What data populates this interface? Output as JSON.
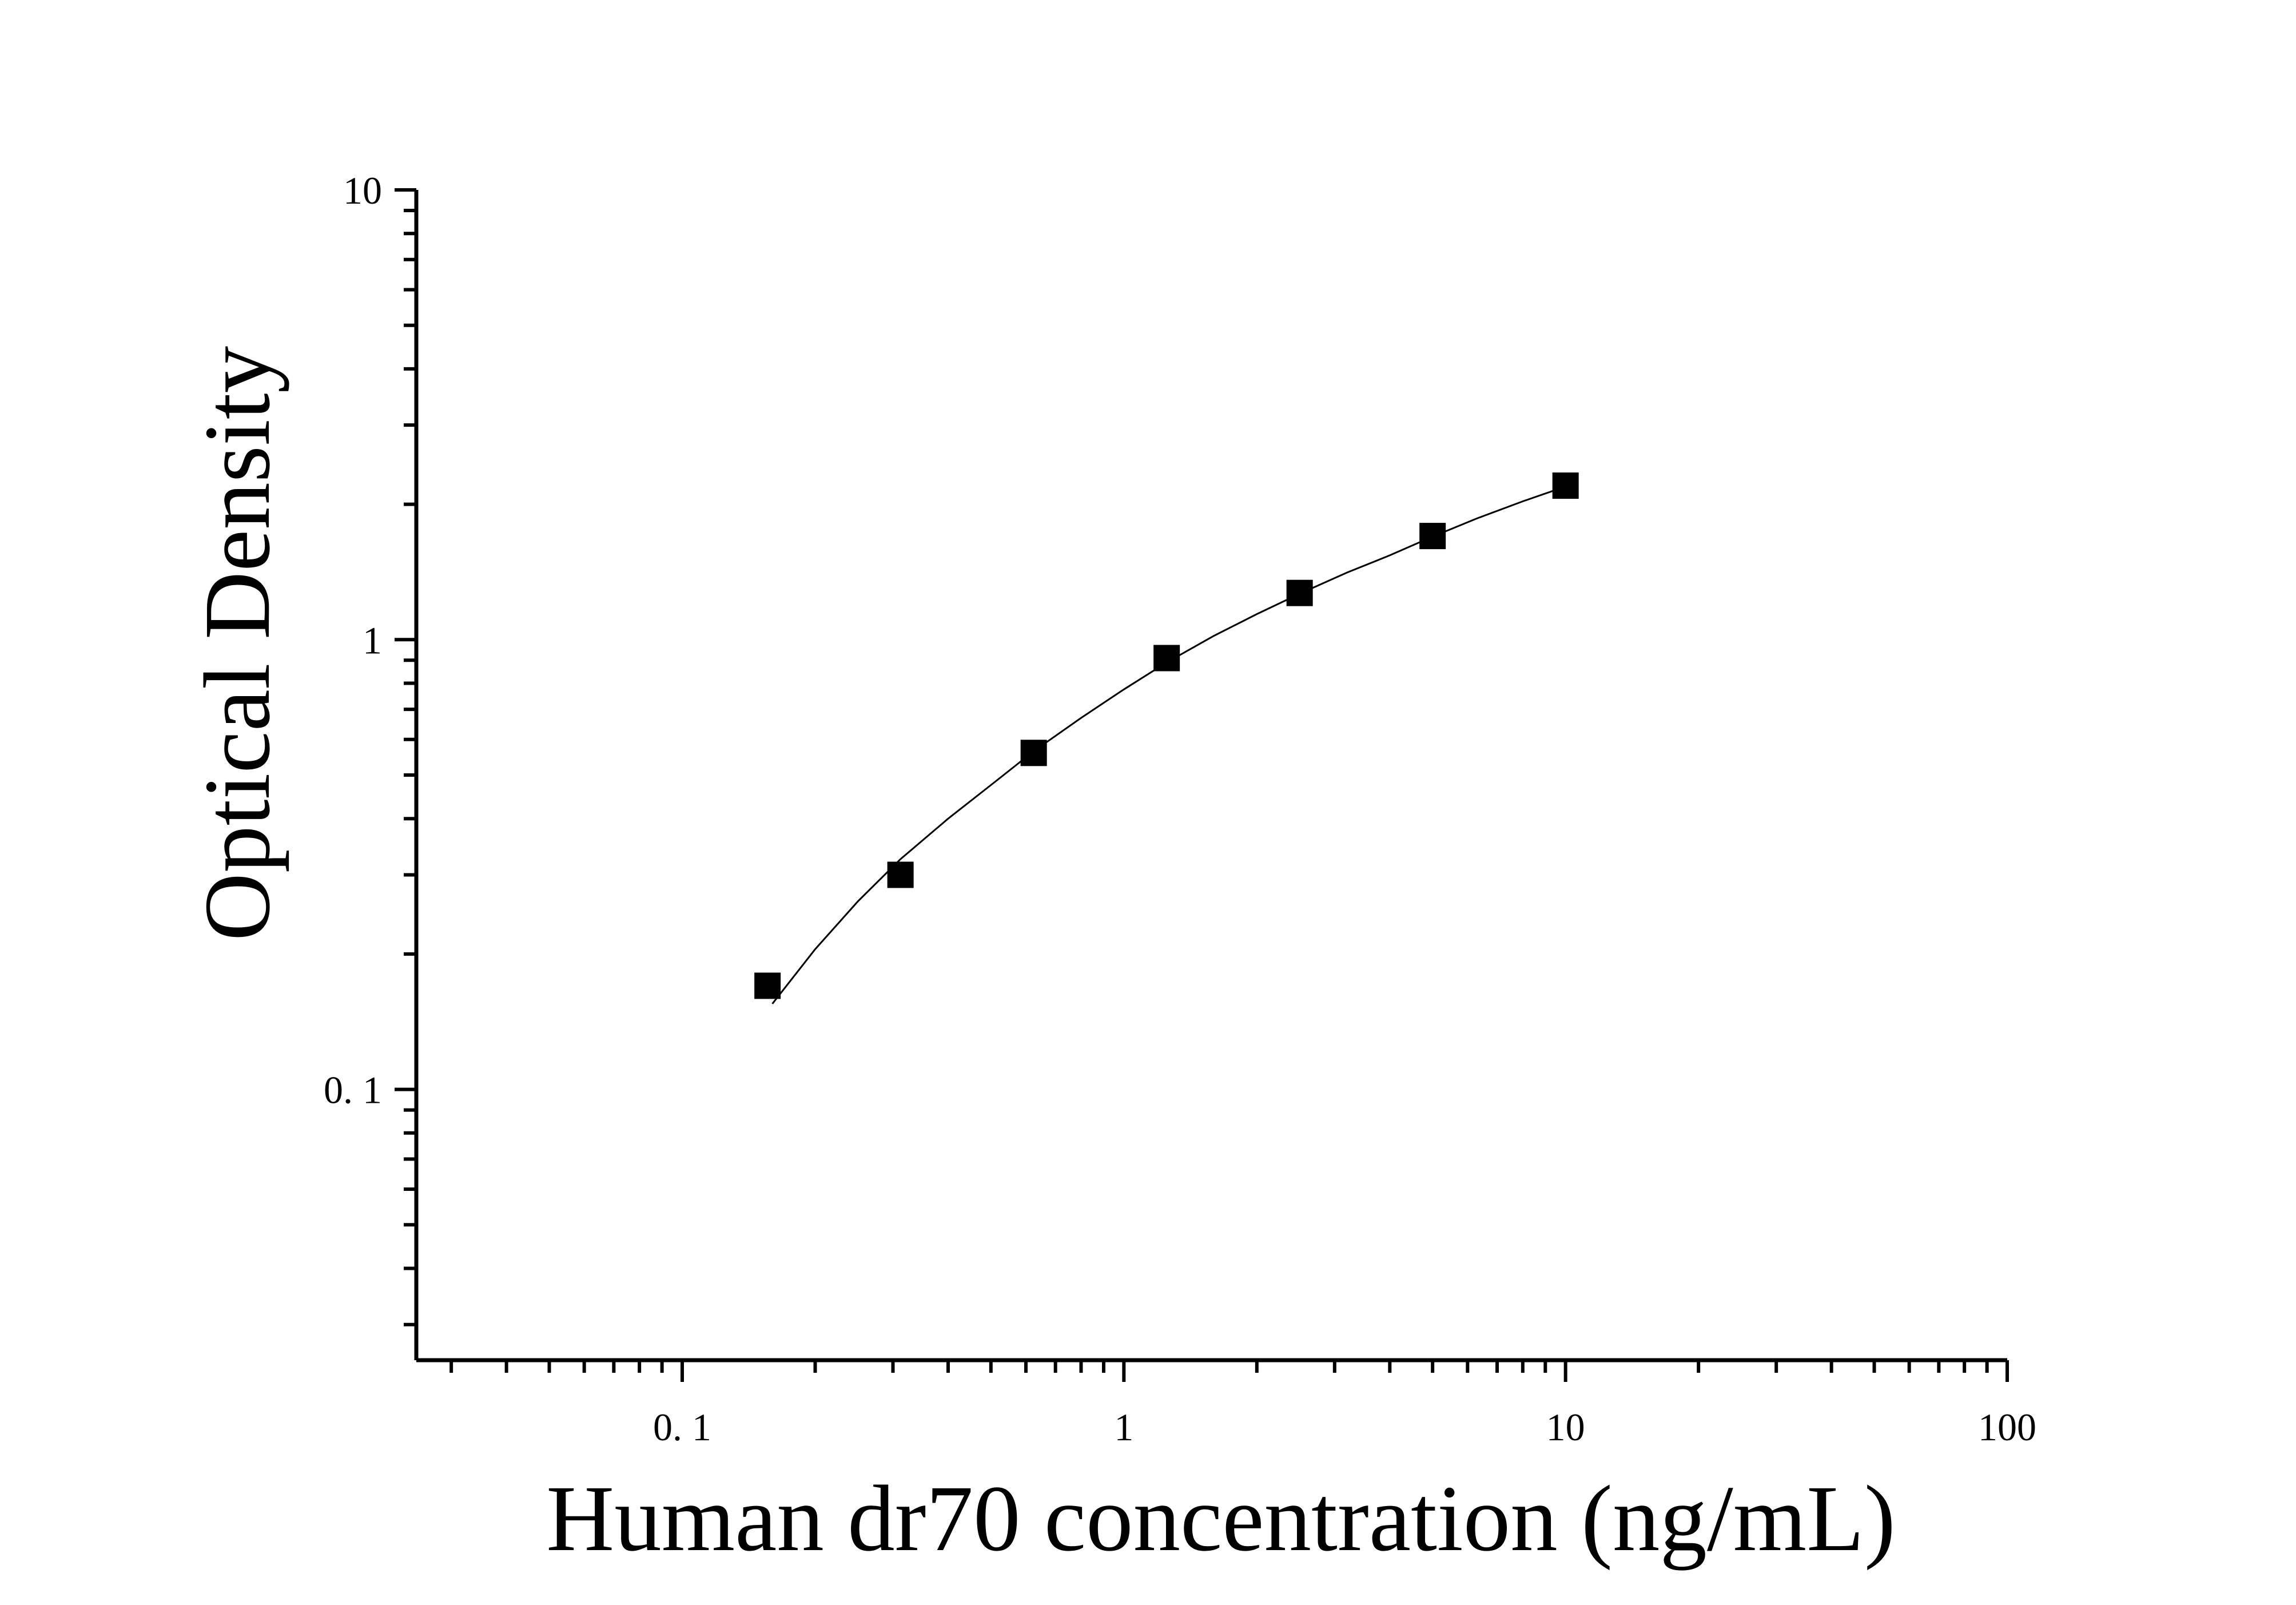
{
  "chart_data": {
    "type": "scatter",
    "title": "",
    "xlabel": "Human dr70 concentration (ng/mL)",
    "ylabel": "Optical Density",
    "x_scale": "log",
    "y_scale": "log",
    "xlim": [
      0.025,
      100
    ],
    "ylim": [
      0.025,
      10
    ],
    "x_ticks": [
      {
        "value": 0.1,
        "label": "0. 1"
      },
      {
        "value": 1,
        "label": "1"
      },
      {
        "value": 10,
        "label": "10"
      },
      {
        "value": 100,
        "label": "100"
      }
    ],
    "y_ticks": [
      {
        "value": 0.1,
        "label": "0. 1"
      },
      {
        "value": 1,
        "label": "1"
      },
      {
        "value": 10,
        "label": "10"
      }
    ],
    "grid": false,
    "legend": "none",
    "series": [
      {
        "marker": "square",
        "color": "#000000",
        "x": [
          0.156,
          0.312,
          0.625,
          1.25,
          2.5,
          5,
          10
        ],
        "y": [
          0.17,
          0.3,
          0.56,
          0.91,
          1.27,
          1.7,
          2.2
        ]
      }
    ],
    "fit_curve": {
      "color": "#000000",
      "x": [
        0.16,
        0.2,
        0.25,
        0.312,
        0.4,
        0.5,
        0.625,
        0.8,
        1.0,
        1.25,
        1.6,
        2.0,
        2.5,
        3.2,
        4.0,
        5.0,
        6.3,
        8.0,
        10.0
      ],
      "y": [
        0.155,
        0.205,
        0.262,
        0.325,
        0.4,
        0.475,
        0.565,
        0.67,
        0.775,
        0.89,
        1.02,
        1.14,
        1.265,
        1.41,
        1.54,
        1.695,
        1.86,
        2.03,
        2.19
      ]
    }
  }
}
